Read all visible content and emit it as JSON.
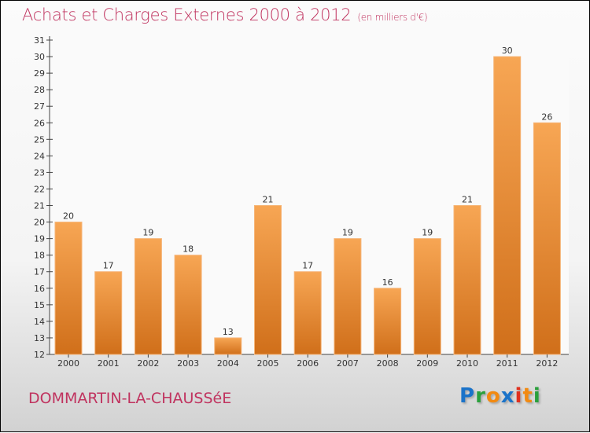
{
  "title": "Achats et Charges Externes 2000 à 2012",
  "unit": "(en milliers d'€)",
  "commune": "DOMMARTIN-LA-CHAUSSéE",
  "logo": {
    "text": "Proxiti",
    "letters": [
      {
        "c": "P",
        "color": "#1a73c9"
      },
      {
        "c": "r",
        "color": "#2aa03c"
      },
      {
        "c": "o",
        "color": "#f28a12"
      },
      {
        "c": "x",
        "color": "#1a73c9"
      },
      {
        "c": "i",
        "color": "#e0301e"
      },
      {
        "c": "t",
        "color": "#f28a12"
      },
      {
        "c": "i",
        "color": "#2aa03c"
      }
    ]
  },
  "chart_data": {
    "type": "bar",
    "title": "Achats et Charges Externes 2000 à 2012",
    "xlabel": "",
    "ylabel": "",
    "categories": [
      "2000",
      "2001",
      "2002",
      "2003",
      "2004",
      "2005",
      "2006",
      "2007",
      "2008",
      "2009",
      "2010",
      "2011",
      "2012"
    ],
    "values": [
      20,
      17,
      19,
      18,
      13,
      21,
      17,
      19,
      16,
      19,
      21,
      30,
      26
    ],
    "ylim": [
      12,
      31
    ],
    "yticks": [
      12,
      13,
      14,
      15,
      16,
      17,
      18,
      19,
      20,
      21,
      22,
      23,
      24,
      25,
      26,
      27,
      28,
      29,
      30,
      31
    ],
    "bar_color": "#f08a2a",
    "grid": false
  }
}
